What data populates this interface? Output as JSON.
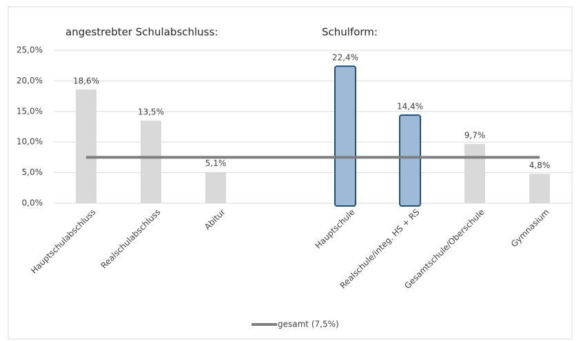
{
  "chart_data": {
    "type": "bar",
    "annotations": [
      "angestrebter Schulabschluss:",
      "Schulform:"
    ],
    "categories": [
      "Hauptschulabschluss",
      "Realschulabschluss",
      "Abitur",
      null,
      "Hauptschule",
      "Realschule/integ. HS + RS",
      "Gesamtschule/Oberschule",
      "Gymnasium"
    ],
    "values": [
      18.6,
      13.5,
      5.1,
      null,
      22.4,
      14.4,
      9.7,
      4.8
    ],
    "value_labels": [
      "18,6%",
      "13,5%",
      "5,1%",
      null,
      "22,4%",
      "14,4%",
      "9,7%",
      "4,8%"
    ],
    "colors": [
      "#d9d9d9",
      "#d9d9d9",
      "#d9d9d9",
      null,
      "#9dbbd6",
      "#9dbbd6",
      "#d9d9d9",
      "#d9d9d9"
    ],
    "reference_line": {
      "name": "gesamt (7,5%)",
      "value": 7.5,
      "color": "#7f7f7f"
    },
    "ylim": [
      0,
      25
    ],
    "yticks": [
      {
        "value": 0,
        "label": "0,0%"
      },
      {
        "value": 5,
        "label": "5,0%"
      },
      {
        "value": 10,
        "label": "10,0%"
      },
      {
        "value": 15,
        "label": "15,0%"
      },
      {
        "value": 20,
        "label": "20,0%"
      },
      {
        "value": 25,
        "label": "25,0%"
      }
    ],
    "grid": true
  }
}
